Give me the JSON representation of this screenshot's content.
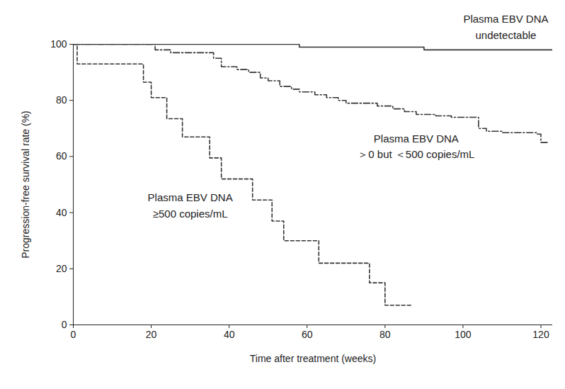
{
  "chart_data": {
    "type": "line",
    "x_label": "Time after treatment (weeks)",
    "y_label": "Progression-free survival rate (%)",
    "xlim": [
      0,
      123
    ],
    "ylim": [
      0,
      100
    ],
    "xticks": [
      0,
      20,
      40,
      60,
      80,
      100,
      120
    ],
    "yticks": [
      0,
      20,
      40,
      60,
      80,
      100
    ],
    "series": [
      {
        "name": "Plasma EBV DNA\nundetectable",
        "color": "#333333",
        "line_style": "solid",
        "x": [
          0,
          58,
          90,
          123
        ],
        "values": [
          100,
          99,
          98,
          98
        ]
      },
      {
        "name": "Plasma EBV DNA\n＞0 but ＜500 copies/mL",
        "color": "#333333",
        "line_style": "dashdot",
        "x": [
          0,
          21,
          25,
          36,
          38,
          42,
          45,
          48,
          50,
          53,
          56,
          58,
          62,
          65,
          68,
          70,
          78,
          82,
          85,
          88,
          93,
          97,
          104,
          106,
          110,
          119,
          120,
          122
        ],
        "values": [
          100,
          98,
          97,
          95,
          92,
          91,
          90,
          88,
          87,
          85,
          84,
          83,
          82,
          81,
          80,
          79,
          78,
          77,
          76,
          75,
          74.5,
          74,
          70,
          69,
          68.5,
          68,
          65,
          65
        ]
      },
      {
        "name": "Plasma EBV DNA\n≥500 copies/mL",
        "color": "#333333",
        "line_style": "dashed",
        "x": [
          0,
          1,
          18,
          20,
          24,
          28,
          35,
          38,
          46,
          51,
          54,
          63,
          76,
          80,
          87
        ],
        "values": [
          100,
          93,
          86.5,
          81,
          73.5,
          67,
          59.5,
          52,
          44.5,
          37,
          30,
          22,
          15,
          7,
          7
        ]
      }
    ]
  }
}
